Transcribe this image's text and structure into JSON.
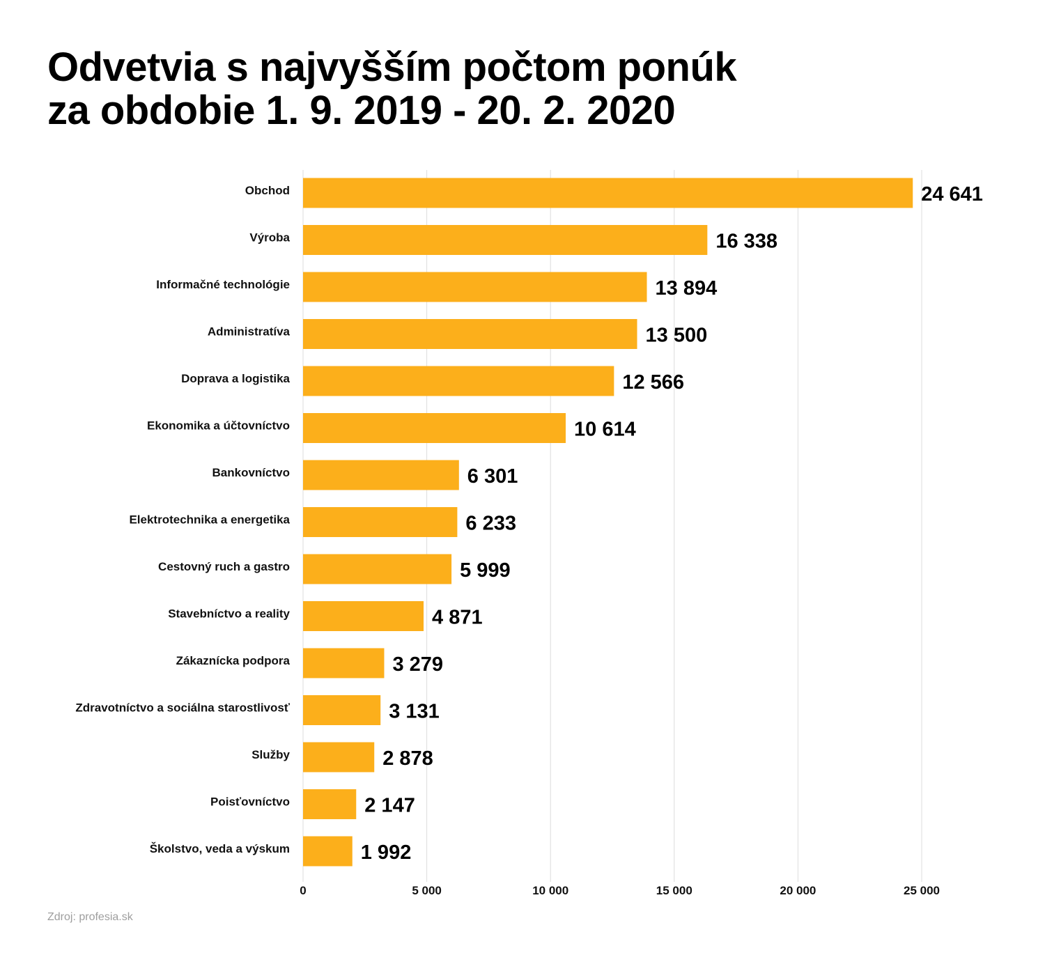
{
  "chart_data": {
    "type": "bar",
    "orientation": "horizontal",
    "title_lines": [
      "Odvetvia s najvyšším počtom ponúk",
      "za obdobie 1. 9. 2019 - 20. 2. 2020"
    ],
    "categories": [
      "Obchod",
      "Výroba",
      "Informačné technológie",
      "Administratíva",
      "Doprava a logistika",
      "Ekonomika a účtovníctvo",
      "Bankovníctvo",
      "Elektrotechnika a energetika",
      "Cestovný ruch a gastro",
      "Stavebníctvo a reality",
      "Zákaznícka podpora",
      "Zdravotníctvo a sociálna starostlivosť",
      "Služby",
      "Poisťovníctvo",
      "Školstvo, veda a výskum"
    ],
    "values": [
      24641,
      16338,
      13894,
      13500,
      12566,
      10614,
      6301,
      6233,
      5999,
      4871,
      3279,
      3131,
      2878,
      2147,
      1992
    ],
    "value_labels": [
      "24 641",
      "16 338",
      "13 894",
      "13 500",
      "12 566",
      "10 614",
      "6 301",
      "6 233",
      "5 999",
      "4 871",
      "3 279",
      "3 131",
      "2 878",
      "2 147",
      "1 992"
    ],
    "xlim": [
      0,
      25000
    ],
    "xticks": [
      0,
      5000,
      10000,
      15000,
      20000,
      25000
    ],
    "xtick_labels": [
      "0",
      "5 000",
      "10 000",
      "15 000",
      "20 000",
      "25 000"
    ],
    "grid": true,
    "xlabel": "",
    "ylabel": "",
    "bar_color": "#FCAF1B",
    "source": "Zdroj: profesia.sk"
  }
}
